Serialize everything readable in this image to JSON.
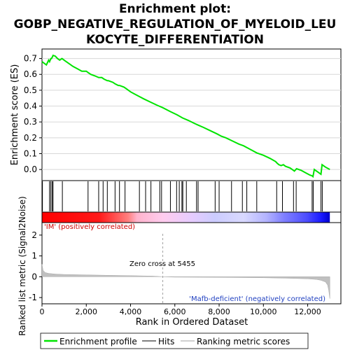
{
  "chart_data": {
    "type": "line",
    "title_line1": "Enrichment plot:",
    "title_line2": "GOBP_NEGATIVE_REGULATION_OF_MYELOID_LEU",
    "title_line3": "KOCYTE_DIFFERENTIATION",
    "es_panel": {
      "ylabel": "Enrichment score (ES)",
      "ylim": [
        -0.07,
        0.76
      ],
      "yticks": [
        0.0,
        0.1,
        0.2,
        0.3,
        0.4,
        0.5,
        0.6,
        0.7
      ],
      "ytick_labels": [
        "0.0",
        "0.1",
        "0.2",
        "0.3",
        "0.4",
        "0.5",
        "0.6",
        "0.7"
      ],
      "series": [
        {
          "name": "Enrichment profile",
          "color": "#00e400",
          "x": [
            0,
            100,
            200,
            300,
            340,
            400,
            430,
            470,
            500,
            600,
            700,
            800,
            900,
            950,
            1000,
            1200,
            1400,
            1600,
            1800,
            2000,
            2100,
            2200,
            2400,
            2560,
            2700,
            2800,
            2950,
            3000,
            3200,
            3300,
            3450,
            3500,
            3700,
            3800,
            4000,
            4200,
            4400,
            4600,
            4900,
            5200,
            5455,
            5800,
            6100,
            6350,
            6600,
            6900,
            7050,
            7300,
            7600,
            7900,
            8100,
            8300,
            8600,
            8900,
            9100,
            9300,
            9500,
            9700,
            10000,
            10300,
            10550,
            10620,
            10700,
            10800,
            10900,
            11000,
            11200,
            11300,
            11400,
            11500,
            11700,
            11900,
            12100,
            12200,
            12240,
            12300,
            12400,
            12500,
            12600,
            12650,
            12800,
            13000
          ],
          "y": [
            0.68,
            0.67,
            0.66,
            0.69,
            0.68,
            0.7,
            0.7,
            0.71,
            0.72,
            0.715,
            0.7,
            0.69,
            0.7,
            0.695,
            0.69,
            0.67,
            0.65,
            0.635,
            0.62,
            0.62,
            0.61,
            0.6,
            0.59,
            0.58,
            0.58,
            0.57,
            0.56,
            0.56,
            0.55,
            0.54,
            0.53,
            0.53,
            0.52,
            0.51,
            0.49,
            0.475,
            0.46,
            0.445,
            0.425,
            0.405,
            0.39,
            0.365,
            0.345,
            0.325,
            0.31,
            0.29,
            0.28,
            0.265,
            0.245,
            0.225,
            0.21,
            0.2,
            0.18,
            0.16,
            0.15,
            0.135,
            0.12,
            0.105,
            0.09,
            0.07,
            0.05,
            0.04,
            0.03,
            0.025,
            0.03,
            0.02,
            0.01,
            0.0,
            -0.01,
            0.005,
            -0.005,
            -0.02,
            -0.035,
            -0.04,
            -0.045,
            0.0,
            -0.01,
            -0.02,
            -0.03,
            0.03,
            0.015,
            0.0
          ]
        }
      ]
    },
    "hits": {
      "name": "Hits",
      "color": "#000000",
      "x": [
        20,
        340,
        400,
        460,
        500,
        920,
        2080,
        2560,
        2760,
        2950,
        3300,
        3500,
        3750,
        4400,
        4680,
        4920,
        5320,
        5400,
        5800,
        6080,
        6200,
        6320,
        6360,
        6520,
        6980,
        7050,
        7820,
        8000,
        8560,
        9050,
        9250,
        9700,
        10600,
        10860,
        11360,
        11480,
        12200,
        12250,
        12600,
        12660
      ]
    },
    "rank_metric": {
      "name": "Ranking metric scores",
      "ylabel": "Ranked list metric (Signal2Noise)",
      "xlabel": "Rank in Ordered Dataset",
      "ylim": [
        -1.3,
        2.6
      ],
      "yticks": [
        -1,
        0,
        1,
        2
      ],
      "ytick_labels": [
        "-1",
        "0",
        "1",
        "2"
      ],
      "xlim": [
        0,
        13500
      ],
      "xticks": [
        0,
        2000,
        4000,
        6000,
        8000,
        10000,
        12000
      ],
      "xtick_labels": [
        "0",
        "2,000",
        "4,000",
        "6,000",
        "8,000",
        "10,000",
        "12,000"
      ],
      "n_ranks": 13000,
      "zero_cross": 5455,
      "zero_cross_label": "Zero cross at 5455",
      "positive_label": "'IM' (positively correlated)",
      "negative_label": "'Mafb-deficient' (negatively correlated)",
      "curve_x": [
        0,
        50,
        150,
        300,
        600,
        1000,
        2000,
        3000,
        4000,
        5000,
        5455,
        6000,
        8000,
        10000,
        11000,
        12000,
        12400,
        12600,
        12800,
        12900,
        12950,
        13000
      ],
      "curve_y": [
        0.6,
        0.3,
        0.2,
        0.16,
        0.13,
        0.11,
        0.09,
        0.07,
        0.05,
        0.03,
        0.0,
        -0.02,
        -0.03,
        -0.05,
        -0.07,
        -0.1,
        -0.13,
        -0.17,
        -0.25,
        -0.4,
        -0.65,
        -1.05
      ]
    },
    "colorbar": {
      "colors": [
        "#ff0000",
        "#ff1a1a",
        "#ff4d4d",
        "#ff8080",
        "#ffb3cc",
        "#ffccee",
        "#e6ccff",
        "#ccccff",
        "#d9d9ff",
        "#b3b3ff",
        "#8080ff",
        "#4d4dff",
        "#1a1aff",
        "#0000cc"
      ],
      "stops": [
        0,
        0.2,
        0.25,
        0.3,
        0.33,
        0.42,
        0.52,
        0.6,
        0.7,
        0.78,
        0.84,
        0.92,
        0.97,
        1.0
      ]
    },
    "legend": {
      "items": [
        {
          "label": "Enrichment profile",
          "color": "#00e400"
        },
        {
          "label": "Hits",
          "color": "#000000"
        },
        {
          "label": "Ranking metric scores",
          "color": "#c0c0c0"
        }
      ]
    }
  }
}
